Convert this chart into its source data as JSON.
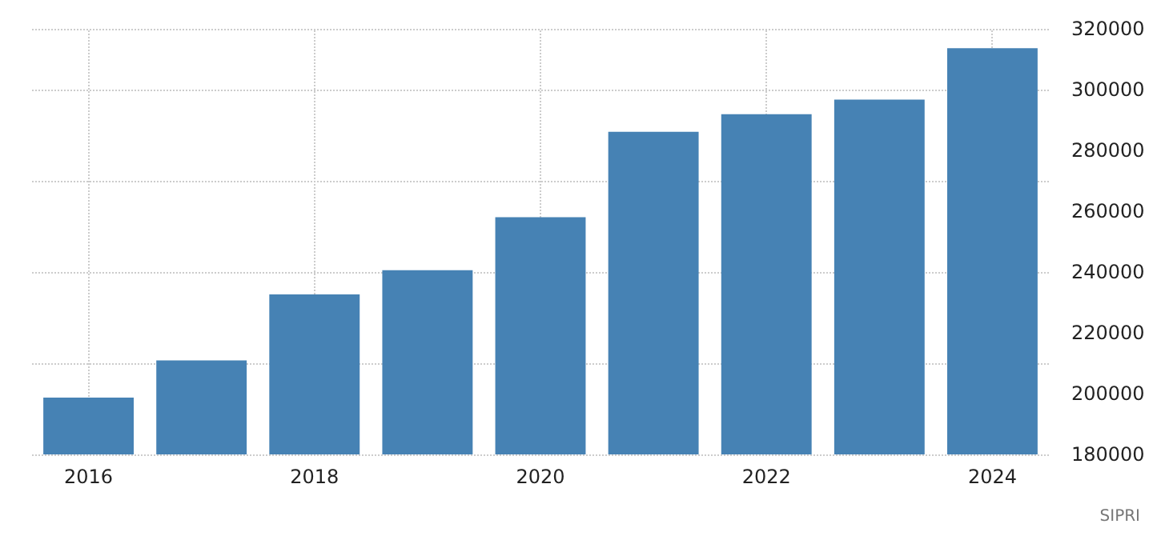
{
  "chart_data": {
    "type": "bar",
    "categories": [
      "2016",
      null,
      "2018",
      null,
      "2020",
      null,
      "2022",
      null,
      "2024"
    ],
    "values": [
      198700,
      210900,
      232600,
      240600,
      258000,
      286100,
      291900,
      296700,
      313600
    ],
    "color": "#4682b4",
    "ylim": [
      180000,
      320000
    ],
    "yticks": [
      180000,
      200000,
      220000,
      240000,
      260000,
      280000,
      300000,
      320000
    ],
    "grid": true,
    "annotations": [
      "SIPRI"
    ]
  }
}
